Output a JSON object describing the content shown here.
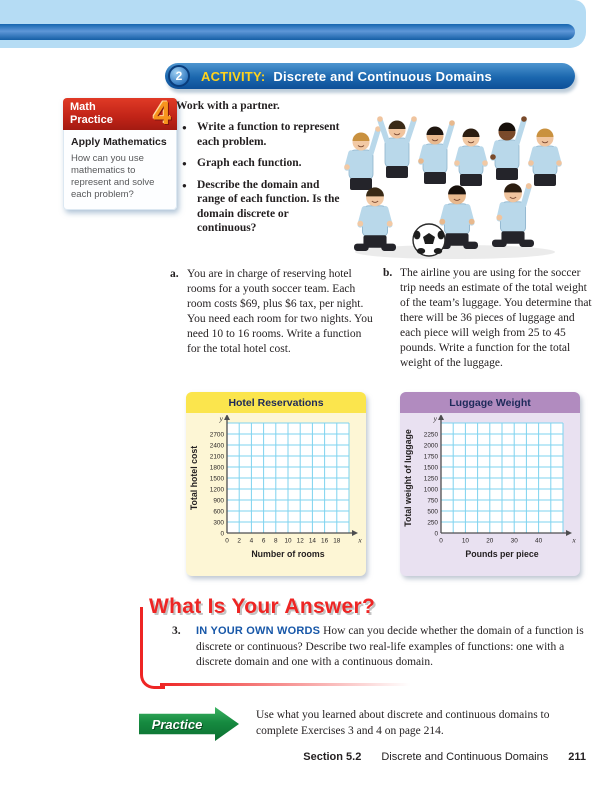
{
  "colors": {
    "banner_light_blue": "#b5dcf4",
    "banner_dark_blue": "#1566b0",
    "activity_bar_blue": "#1b67ae",
    "activity_yellow": "#ffd21c",
    "math_practice_red": "#c02317",
    "math_practice_orange": "#f7941d",
    "hotel_header_yellow": "#fbe54d",
    "hotel_body_yellow": "#fdf6d5",
    "luggage_header_purple": "#b18bbf",
    "luggage_body_purple": "#e9e1f1",
    "grid_line_blue": "#7ed3ef",
    "axis_gray": "#4d4d4f",
    "answer_red": "#ee2524",
    "lead_blue": "#1757a8",
    "practice_green": "#168a40"
  },
  "activity_header": {
    "number": "2",
    "label": "ACTIVITY:",
    "title": "Discrete and Continuous Domains"
  },
  "math_practice": {
    "title": "Math\nPractice",
    "number": "4",
    "subtitle": "Apply Mathematics",
    "body": "How can you use mathematics to represent and solve each problem?"
  },
  "work": {
    "intro": "Work with a partner.",
    "bullets": [
      "Write a function to represent each problem.",
      "Graph each function.",
      "Describe the domain and range of each function. Is the domain discrete or continuous?"
    ]
  },
  "problems": [
    {
      "label": "a.",
      "text": "You are in charge of reserving hotel rooms for a youth soccer team. Each room costs $69, plus $6 tax, per night. You need each room for two nights. You need 10 to 16 rooms. Write a function for the total hotel cost."
    },
    {
      "label": "b.",
      "text": "The airline you are using for the soccer trip needs an estimate of the total weight of the team’s luggage. You determine that there will be 36 pieces of luggage and each piece will weigh from 25 to 45 pounds. Write a function for the total weight of the luggage."
    }
  ],
  "chart_data": [
    {
      "type": "grid",
      "note": "blank coordinate grid for students to plot on; no data series shown",
      "title": "Hotel Reservations",
      "xlabel": "Number of rooms",
      "ylabel": "Total hotel cost",
      "x_letter": "x",
      "y_letter": "y",
      "origin_label": "0",
      "x_tick_labels": [
        "0",
        "2",
        "4",
        "6",
        "8",
        "10",
        "12",
        "14",
        "16",
        "18"
      ],
      "x_tick_every": 1,
      "y_ticks": [
        "300",
        "600",
        "900",
        "1200",
        "1500",
        "1800",
        "2100",
        "2400",
        "2700"
      ],
      "xlim": [
        0,
        20
      ],
      "ylim": [
        0,
        3000
      ],
      "grid": true,
      "series": []
    },
    {
      "type": "grid",
      "note": "blank coordinate grid for students to plot on; no data series shown",
      "title": "Luggage Weight",
      "xlabel": "Pounds per piece",
      "ylabel": "Total weight of luggage",
      "x_letter": "x",
      "y_letter": "y",
      "origin_label": "0",
      "x_tick_labels": [
        "0",
        "10",
        "20",
        "30",
        "40"
      ],
      "x_tick_every": 2,
      "y_ticks": [
        "250",
        "500",
        "750",
        "1000",
        "1250",
        "1500",
        "1750",
        "2000",
        "2250"
      ],
      "xlim": [
        0,
        50
      ],
      "ylim": [
        0,
        2500
      ],
      "grid": true,
      "series": []
    }
  ],
  "answer_section": {
    "heading": "What Is Your Answer?",
    "item_number": "3.",
    "lead": "IN YOUR OWN WORDS",
    "text": " How can you decide whether the domain of a function is discrete or continuous? Describe two real-life examples of functions: one with a discrete domain and one with a continuous domain."
  },
  "practice": {
    "label": "Practice",
    "text": "Use what you learned about discrete and continuous domains to complete Exercises 3 and 4 on page 214."
  },
  "footer": {
    "section": "Section 5.2",
    "title": "Discrete and Continuous Domains",
    "page": "211"
  }
}
